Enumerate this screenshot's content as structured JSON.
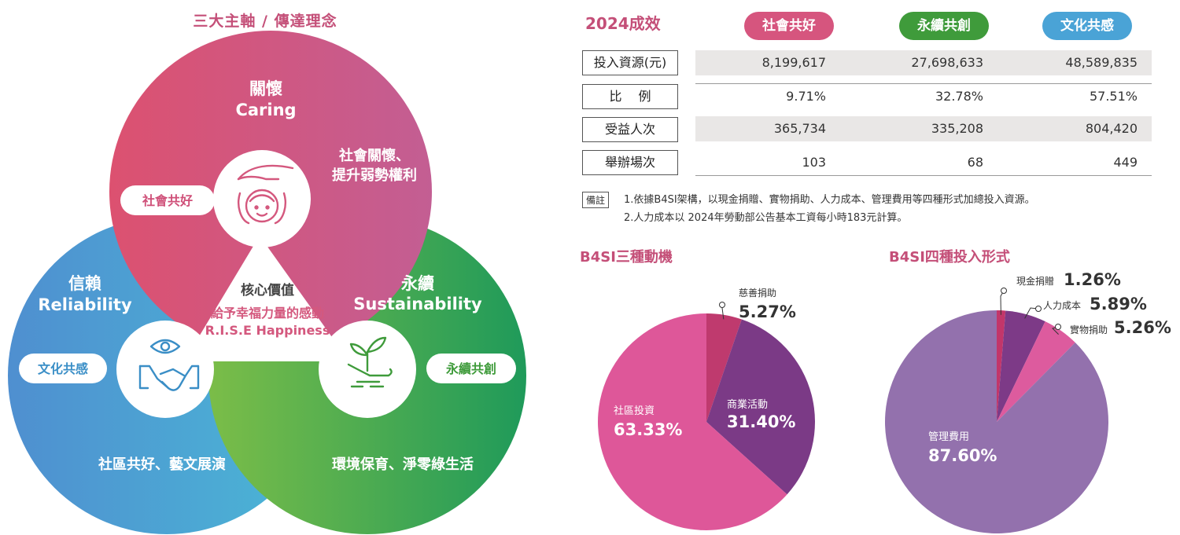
{
  "venn": {
    "title": "三大主軸 /  傳達理念",
    "caring": {
      "zh": "關懷",
      "en": "Caring",
      "desc1": "社會關懷、",
      "desc2": "提升弱勢權利",
      "tag": "社會共好"
    },
    "reliability": {
      "zh": "信賴",
      "en": "Reliability",
      "desc": "社區共好、藝文展演",
      "tag": "文化共感"
    },
    "sustainability": {
      "zh": "永續",
      "en": "Sustainability",
      "desc": "環境保育、淨零綠生活",
      "tag": "永續共創"
    },
    "core": {
      "label": "核心價值",
      "line1": "給予幸福力量的感動",
      "line2": "R.I.S.E Happiness"
    },
    "colors": {
      "caring": "#d4587e",
      "reliability": "#4aa6d3",
      "sustainability": "#3fa848"
    }
  },
  "results": {
    "title": "2024成效",
    "columns": [
      {
        "label": "社會共好",
        "color": "#d6557e"
      },
      {
        "label": "永續共創",
        "color": "#3f9b3b"
      },
      {
        "label": "文化共感",
        "color": "#4aa3d6"
      }
    ],
    "rows": [
      {
        "label": "投入資源(元)",
        "values": [
          "8,199,617",
          "27,698,633",
          "48,589,835"
        ]
      },
      {
        "label": "比　 例",
        "values": [
          "9.71%",
          "32.78%",
          "57.51%"
        ]
      },
      {
        "label": "受益人次",
        "values": [
          "365,734",
          "335,208",
          "804,420"
        ]
      },
      {
        "label": "舉辦場次",
        "values": [
          "103",
          "68",
          "449"
        ]
      }
    ],
    "note_label": "備註",
    "notes": [
      "1.依據B4SI架構，以現金捐贈、實物捐助、人力成本、管理費用等四種形式加總投入資源。",
      "2.人力成本以 2024年勞動部公告基本工資每小時183元計算。"
    ]
  },
  "chart_data": [
    {
      "type": "pie",
      "title": "B4SI三種動機",
      "series": [
        {
          "label": "慈善捐助",
          "value": 5.27,
          "display": "5.27%",
          "color": "#bf3a6e"
        },
        {
          "label": "商業活動",
          "value": 31.4,
          "display": "31.40%",
          "color": "#7b3a86"
        },
        {
          "label": "社區投資",
          "value": 63.33,
          "display": "63.33%",
          "color": "#de5799"
        }
      ]
    },
    {
      "type": "pie",
      "title": "B4SI四種投入形式",
      "series": [
        {
          "label": "現金捐贈",
          "value": 1.26,
          "display": "1.26%",
          "color": "#c2366a"
        },
        {
          "label": "人力成本",
          "value": 5.89,
          "display": "5.89%",
          "color": "#7d3a87"
        },
        {
          "label": "實物捐助",
          "value": 5.26,
          "display": "5.26%",
          "color": "#dd5b9e"
        },
        {
          "label": "管理費用",
          "value": 87.6,
          "display": "87.60%",
          "color": "#9371ad"
        }
      ]
    }
  ]
}
